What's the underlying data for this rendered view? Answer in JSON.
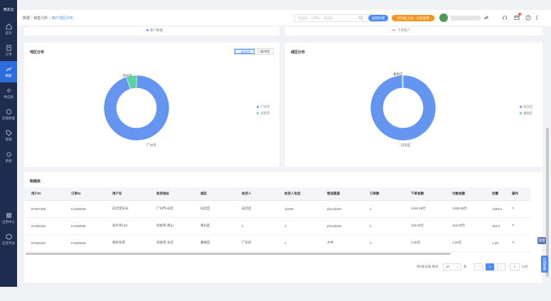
{
  "app": {
    "logo": "用友云"
  },
  "sidebar": {
    "items": [
      {
        "label": "首页"
      },
      {
        "label": "订单"
      },
      {
        "label": "数据"
      },
      {
        "label": "供应链"
      },
      {
        "label": "店铺管理"
      },
      {
        "label": "营销"
      },
      {
        "label": "系统"
      }
    ],
    "bottom": [
      {
        "label": "应用中心"
      },
      {
        "label": "信息平台"
      }
    ]
  },
  "header": {
    "breadcrumb": [
      "数据",
      "销售分析",
      "用户地区分布"
    ],
    "search_placeholder": "商品名、订单号、商品码",
    "btn_primary": "返回旧版",
    "btn_promo": "新功能上线，点击查看",
    "colors": {
      "accent": "#4a8bf5",
      "promo": "#f7941d",
      "sidebar": "#1e2c4f"
    }
  },
  "top_strip": {
    "left_legend": "客户数量",
    "right_legend": "下单客户"
  },
  "region_card": {
    "title": "地区分布",
    "seg": [
      "一级地区",
      "二级地区"
    ],
    "legend": [
      {
        "name": "广州市",
        "color": "#6495f0"
      },
      {
        "name": "深圳市",
        "color": "#5bd3a0"
      }
    ],
    "labels": {
      "top": "深圳市",
      "bottom": "广州市"
    },
    "chart_data": {
      "type": "pie",
      "categories": [
        "广州市",
        "深圳市"
      ],
      "values": [
        95,
        5
      ]
    }
  },
  "district_card": {
    "title": "城区分布",
    "legend": [
      {
        "name": "白云区",
        "color": "#6495f0"
      },
      {
        "name": "番禺区",
        "color": "#5bd3a0"
      }
    ],
    "labels": {
      "top": "番禺区",
      "bottom": "白云区"
    },
    "chart_data": {
      "type": "pie",
      "categories": [
        "白云区",
        "番禺区"
      ],
      "values": [
        99.5,
        0.5
      ]
    }
  },
  "detail": {
    "title": "明细表",
    "columns": [
      "用户ID",
      "订单ID",
      "用户名",
      "收货地址",
      "城区",
      "收货人",
      "收货人电话",
      "物流渠道",
      "订单数",
      "下单金额",
      "付款金额",
      "优惠",
      "操作"
    ],
    "rows": [
      [
        "57367469",
        "K1200029",
        "白云宠乐乐",
        "广州市-白云",
        "白云区",
        "白云店",
        "12345",
        "phcsdin01",
        "1",
        "1348.46元",
        "1335.95元",
        "1335.9",
        "✎"
      ],
      [
        "57262183",
        "K1200025",
        "张大爷123",
        "深圳市-南山",
        "南山区",
        "1",
        "1",
        "phcsdin01",
        "1",
        "110.00元",
        "110.00元",
        "110.0",
        "✎"
      ],
      [
        "57262184",
        "K1200026",
        "保利华府",
        "深圳市-龙华",
        "番禺区",
        "广东店",
        "1",
        "大件",
        "1",
        "1.20元",
        "1.20元",
        "1.20",
        "✎"
      ]
    ],
    "pager": {
      "total_text": "共3条记录 每页",
      "page_size": "10",
      "unit": "条",
      "current": "1",
      "goto_value": "1",
      "goto_suffix": "/1页"
    }
  },
  "side_tabs": {
    "feedback": "反馈",
    "service": "在线客服"
  }
}
